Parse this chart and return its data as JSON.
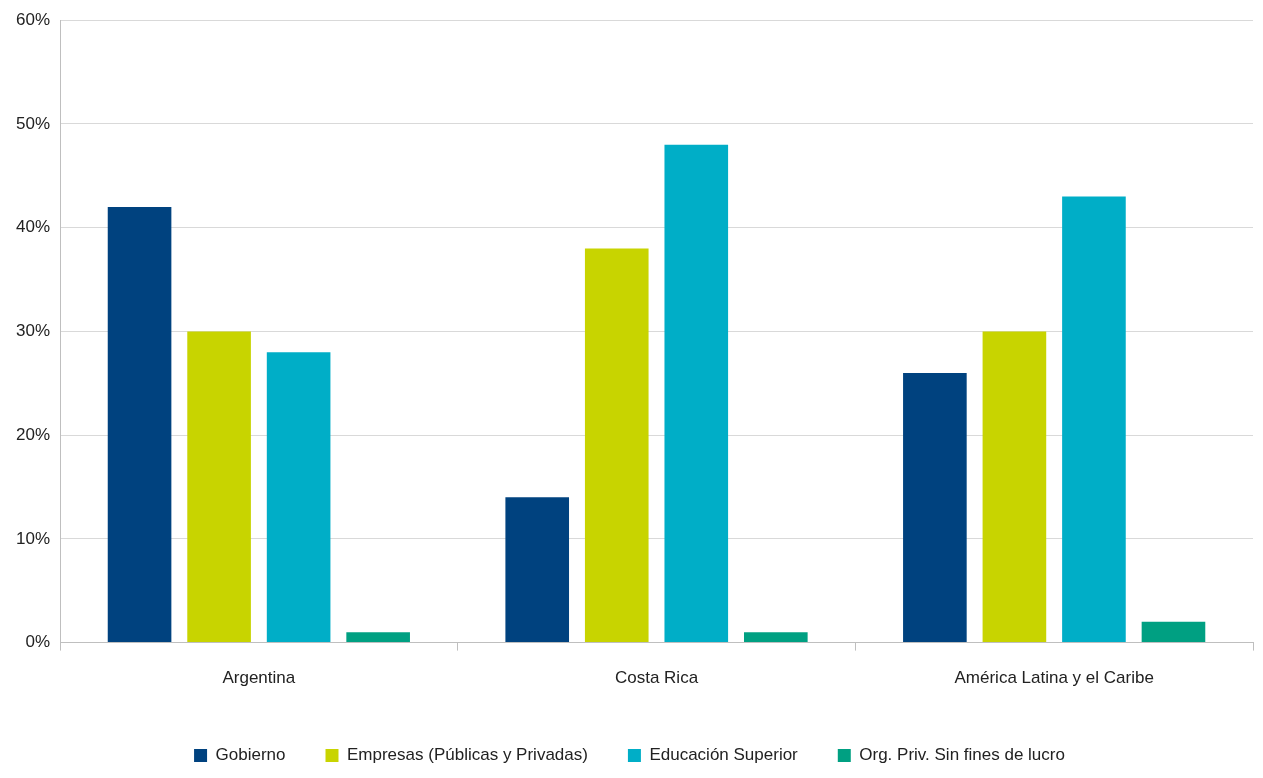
{
  "chart_data": {
    "type": "bar",
    "categories": [
      "Argentina",
      "Costa Rica",
      "América Latina y el Caribe"
    ],
    "series": [
      {
        "name": "Gobierno",
        "color": "#00427f",
        "values": [
          42,
          14,
          26
        ]
      },
      {
        "name": "Empresas (Públicas y Privadas)",
        "color": "#c8d400",
        "values": [
          30,
          38,
          30
        ]
      },
      {
        "name": "Educación Superior",
        "color": "#00aec7",
        "values": [
          28,
          48,
          43
        ]
      },
      {
        "name": "Org. Priv. Sin fines de lucro",
        "color": "#00a082",
        "values": [
          1,
          1,
          2
        ]
      }
    ],
    "ylim": [
      0,
      60
    ],
    "yticks": [
      {
        "value": 0,
        "label": "0%"
      },
      {
        "value": 10,
        "label": "10%"
      },
      {
        "value": 20,
        "label": "20%"
      },
      {
        "value": 30,
        "label": "30%"
      },
      {
        "value": 40,
        "label": "40%"
      },
      {
        "value": 50,
        "label": "50%"
      },
      {
        "value": 60,
        "label": "60%"
      }
    ],
    "grid": "y",
    "legend": "bottom"
  }
}
